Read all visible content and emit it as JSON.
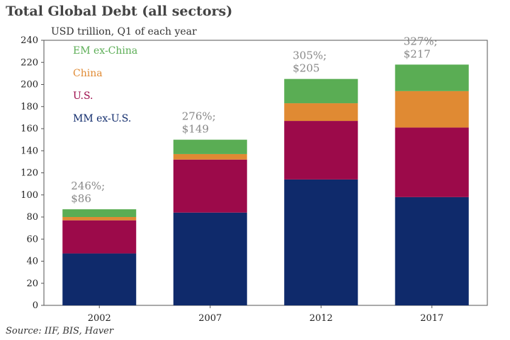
{
  "chart_data": {
    "type": "bar",
    "stacked": true,
    "title": "Total Global Debt (all sectors)",
    "subtitle": "USD trillion, Q1 of each year",
    "source": "Source: IIF, BIS, Haver",
    "categories": [
      "2002",
      "2007",
      "2012",
      "2017"
    ],
    "series": [
      {
        "name": "MM ex-U.S.",
        "color": "#0f2a6b",
        "values": [
          47,
          84,
          114,
          98
        ]
      },
      {
        "name": "U.S.",
        "color": "#9c0a4a",
        "values": [
          30,
          48,
          53,
          63
        ]
      },
      {
        "name": "China",
        "color": "#e08a33",
        "values": [
          3,
          5,
          16,
          33
        ]
      },
      {
        "name": "EM ex-China",
        "color": "#5aad54",
        "values": [
          7,
          13,
          22,
          24
        ]
      }
    ],
    "legend_order": [
      "EM ex-China",
      "China",
      "U.S.",
      "MM ex-U.S."
    ],
    "annotations": [
      {
        "line1": "246%;",
        "line2": "$86"
      },
      {
        "line1": "276%;",
        "line2": "$149"
      },
      {
        "line1": "305%;",
        "line2": "$205"
      },
      {
        "line1": "327%;",
        "line2": "$217"
      }
    ],
    "ylim": [
      0,
      240
    ],
    "yticks": [
      0,
      20,
      40,
      60,
      80,
      100,
      120,
      140,
      160,
      180,
      200,
      220,
      240
    ],
    "grid": false,
    "legend_position": "top-left"
  }
}
